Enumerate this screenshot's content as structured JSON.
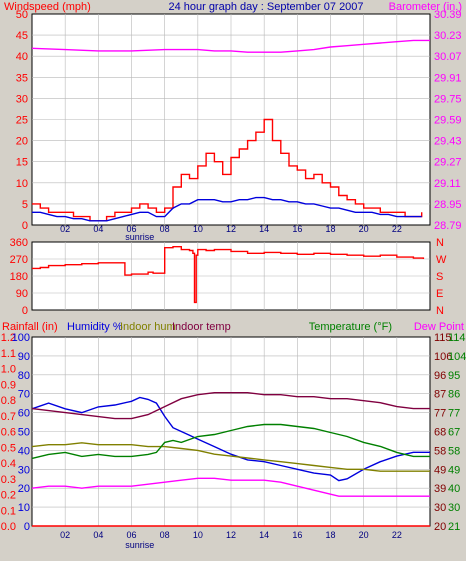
{
  "header": {
    "left_title": "Windspeed (mph)",
    "center_title": "24 hour graph day : September 07 2007",
    "right_title": "Barometer (in.)"
  },
  "colors": {
    "bg": "#d4d0c8",
    "plot_bg": "#ffffff",
    "grid": "#b8b8b8",
    "red": "#ff0000",
    "blue": "#0000dd",
    "magenta": "#ff00ff",
    "olive": "#808000",
    "maroon": "#800040",
    "green": "#008000",
    "dark_red": "#800000",
    "dark_green": "#008000"
  },
  "x_ticks": [
    "02",
    "04",
    "06",
    "08",
    "10",
    "12",
    "14",
    "16",
    "18",
    "20",
    "22"
  ],
  "x_tick_hours": [
    2,
    4,
    6,
    8,
    10,
    12,
    14,
    16,
    18,
    20,
    22
  ],
  "sunrise_label": "sunrise",
  "sunrise_hour": 6.5,
  "chart_data": [
    {
      "type": "line",
      "title": "",
      "x_unit": "hour of day",
      "x_range": [
        0,
        24
      ],
      "left_axis": {
        "label": "Windspeed (mph)",
        "range": [
          0,
          50
        ],
        "ticks": [
          "0",
          "5",
          "10",
          "15",
          "20",
          "25",
          "30",
          "35",
          "40",
          "45",
          "50"
        ]
      },
      "right_axis": {
        "label": "Barometer (in.)",
        "range": [
          28.79,
          30.39
        ],
        "ticks": [
          "28.79",
          "28.95",
          "29.11",
          "29.27",
          "29.43",
          "29.59",
          "29.75",
          "29.91",
          "30.07",
          "30.23",
          "30.39"
        ]
      },
      "series": [
        {
          "name": "Windspeed (mph)",
          "axis": "left",
          "style": "gust",
          "color": "#ff0000",
          "x": [
            0,
            0.5,
            1,
            1.5,
            2,
            2.5,
            3,
            3.5,
            4,
            4.5,
            5,
            5.5,
            6,
            6.5,
            7,
            7.5,
            8,
            8.5,
            9,
            9.5,
            10,
            10.5,
            11,
            11.5,
            12,
            12.5,
            13,
            13.5,
            14,
            14.5,
            15,
            15.5,
            16,
            16.5,
            17,
            17.5,
            18,
            18.5,
            19,
            19.5,
            20,
            20.5,
            21,
            21.5,
            22,
            22.5,
            23,
            23.5
          ],
          "y": [
            5,
            4,
            3,
            3,
            3,
            2,
            2,
            1,
            1,
            2,
            3,
            3,
            4,
            5,
            4,
            3,
            4,
            9,
            12,
            11,
            14,
            17,
            15,
            12,
            16,
            18,
            20,
            22,
            25,
            20,
            17,
            14,
            13,
            11,
            12,
            10,
            9,
            7,
            6,
            5,
            4,
            4,
            3,
            3,
            3,
            2,
            2,
            3
          ]
        },
        {
          "name": "Avg windspeed",
          "axis": "left",
          "style": "line",
          "color": "#0000dd",
          "x": [
            0,
            0.5,
            1,
            1.5,
            2,
            2.5,
            3,
            3.5,
            4,
            4.5,
            5,
            5.5,
            6,
            6.5,
            7,
            7.5,
            8,
            8.5,
            9,
            9.5,
            10,
            10.5,
            11,
            11.5,
            12,
            12.5,
            13,
            13.5,
            14,
            14.5,
            15,
            15.5,
            16,
            16.5,
            17,
            17.5,
            18,
            18.5,
            19,
            19.5,
            20,
            20.5,
            21,
            21.5,
            22,
            22.5,
            23,
            23.5
          ],
          "y": [
            3,
            3,
            2.5,
            2,
            2,
            1.5,
            1.5,
            1,
            1,
            1,
            1.5,
            2,
            2.5,
            3,
            3,
            2,
            2,
            4,
            5,
            5,
            6,
            6,
            6,
            5.5,
            5.5,
            6,
            6,
            6.5,
            6.5,
            6,
            6,
            5.5,
            5.5,
            5,
            5,
            4.5,
            4,
            4,
            3.5,
            3,
            3,
            3,
            2.5,
            2.5,
            2,
            2,
            2,
            2
          ]
        },
        {
          "name": "Barometer (in.)",
          "axis": "right",
          "style": "line",
          "color": "#ff00ff",
          "x": [
            0,
            2,
            4,
            6,
            8,
            10,
            11,
            12,
            13,
            14,
            15,
            16,
            17,
            18,
            19,
            20,
            21,
            22,
            23,
            24
          ],
          "y": [
            30.13,
            30.12,
            30.11,
            30.11,
            30.12,
            30.12,
            30.11,
            30.11,
            30.1,
            30.1,
            30.1,
            30.11,
            30.12,
            30.14,
            30.15,
            30.16,
            30.17,
            30.18,
            30.19,
            30.19
          ]
        }
      ]
    },
    {
      "type": "line",
      "title": "",
      "x_unit": "hour of day",
      "x_range": [
        0,
        24
      ],
      "left_axis": {
        "label": "Wind direction",
        "range": [
          0,
          360
        ],
        "ticks": [
          "0",
          "90",
          "180",
          "270",
          "360"
        ]
      },
      "right_axis": {
        "label": "",
        "range": [
          0,
          360
        ],
        "ticks": [
          "N",
          "E",
          "S",
          "W",
          "N"
        ]
      },
      "series": [
        {
          "name": "Wind direction",
          "axis": "left",
          "color": "#ff0000",
          "x": [
            0,
            0.5,
            1,
            2,
            3,
            4,
            5,
            5.6,
            6,
            7,
            7.3,
            7.6,
            8,
            8.5,
            9,
            9.5,
            9.7,
            9.8,
            9.9,
            10,
            10.5,
            11,
            12,
            13,
            14,
            15,
            16,
            17,
            18,
            19,
            20,
            21,
            22,
            23,
            23.6
          ],
          "y": [
            220,
            225,
            235,
            240,
            245,
            250,
            250,
            185,
            190,
            200,
            195,
            195,
            330,
            335,
            320,
            315,
            300,
            40,
            290,
            320,
            315,
            320,
            310,
            300,
            305,
            300,
            295,
            300,
            295,
            290,
            285,
            290,
            280,
            275,
            270
          ]
        }
      ]
    },
    {
      "type": "line",
      "title": "",
      "x_unit": "hour of day",
      "x_range": [
        0,
        24
      ],
      "axes": [
        {
          "label": "Rainfall (in)",
          "side": "left",
          "range": [
            0,
            1.2
          ],
          "ticks": [
            "0.0",
            "0.1",
            "0.2",
            "0.3",
            "0.4",
            "0.5",
            "0.6",
            "0.7",
            "0.8",
            "0.9",
            "1.0",
            "1.1",
            "1.2"
          ]
        },
        {
          "label": "Humidity %",
          "side": "left",
          "range": [
            0,
            100
          ],
          "ticks": [
            "0",
            "10",
            "20",
            "30",
            "40",
            "50",
            "60",
            "70",
            "80",
            "90",
            "100"
          ]
        },
        {
          "label": "Temperature (°F)",
          "side": "right",
          "range": [
            20,
            115
          ],
          "ticks": [
            "20",
            "30",
            "39",
            "49",
            "58",
            "68",
            "77",
            "87",
            "96",
            "106",
            "115"
          ]
        },
        {
          "label": "Dew Point",
          "side": "right",
          "range": [
            20,
            115
          ],
          "ticks": [
            "21",
            "30",
            "40",
            "49",
            "58",
            "67",
            "77",
            "86",
            "95",
            "104",
            "114"
          ]
        }
      ],
      "legend": [
        "Rainfall (in)",
        "Humidity %",
        "Indoor hum",
        "Indoor temp",
        "Temperature (°F)",
        "Dew Point"
      ],
      "series": [
        {
          "name": "Rainfall (in)",
          "axis": "Rainfall (in)",
          "color": "#ff0000",
          "x": [
            0,
            24
          ],
          "y": [
            0,
            0
          ]
        },
        {
          "name": "Humidity %",
          "axis": "Humidity %",
          "color": "#0000dd",
          "x": [
            0,
            1,
            2,
            3,
            4,
            5,
            6,
            6.5,
            7,
            7.5,
            8,
            8.5,
            9,
            9.5,
            10,
            11,
            12,
            13,
            14,
            15,
            16,
            17,
            18,
            18.5,
            19,
            20,
            21,
            22,
            23,
            24
          ],
          "y": [
            62,
            65,
            62,
            60,
            63,
            64,
            66,
            68,
            67,
            65,
            58,
            52,
            50,
            48,
            46,
            42,
            38,
            35,
            34,
            32,
            30,
            28,
            27,
            24,
            25,
            30,
            34,
            37,
            39,
            39
          ]
        },
        {
          "name": "Indoor hum",
          "axis": "Humidity %",
          "color": "#808000",
          "x": [
            0,
            1,
            2,
            3,
            4,
            5,
            6,
            7,
            8,
            9,
            10,
            11,
            12,
            13,
            14,
            15,
            16,
            17,
            18,
            19,
            20,
            21,
            22,
            23,
            24
          ],
          "y": [
            42,
            43,
            43,
            44,
            43,
            43,
            43,
            42,
            42,
            41,
            40,
            38,
            37,
            36,
            35,
            34,
            33,
            32,
            31,
            30,
            30,
            29,
            29,
            29,
            29
          ]
        },
        {
          "name": "Indoor temp",
          "axis": "Temperature (°F)",
          "color": "#800040",
          "x": [
            0,
            1,
            2,
            3,
            4,
            5,
            6,
            7,
            8,
            9,
            10,
            11,
            12,
            13,
            14,
            15,
            16,
            17,
            18,
            19,
            20,
            21,
            22,
            23,
            24
          ],
          "y": [
            79,
            78,
            77,
            76,
            75,
            74,
            74,
            76,
            80,
            84,
            86,
            87,
            87,
            87,
            86,
            86,
            85,
            85,
            84,
            84,
            83,
            82,
            80,
            79,
            79
          ]
        },
        {
          "name": "Temperature (°F)",
          "axis": "Temperature (°F)",
          "color": "#008000",
          "x": [
            0,
            1,
            2,
            3,
            4,
            5,
            6,
            7,
            7.5,
            8,
            8.5,
            9,
            10,
            11,
            12,
            13,
            14,
            15,
            16,
            17,
            18,
            19,
            20,
            21,
            22,
            23,
            24
          ],
          "y": [
            54,
            56,
            57,
            55,
            56,
            55,
            55,
            56,
            57,
            62,
            63,
            62,
            65,
            66,
            68,
            70,
            71,
            71,
            70,
            69,
            67,
            65,
            62,
            60,
            57,
            55,
            55
          ]
        },
        {
          "name": "Dew Point",
          "axis": "Temperature (°F)",
          "color": "#ff00ff",
          "x": [
            0,
            1,
            2,
            3,
            4,
            5,
            6,
            7,
            8,
            9,
            10,
            11,
            12,
            13,
            14,
            15,
            16,
            17,
            18,
            18.5,
            19,
            20,
            21,
            22,
            23,
            24
          ],
          "y": [
            39,
            40,
            40,
            39,
            40,
            40,
            40,
            41,
            42,
            43,
            44,
            44,
            43,
            43,
            43,
            42,
            40,
            38,
            36,
            35,
            35,
            35,
            35,
            35,
            35,
            35
          ]
        }
      ]
    }
  ]
}
